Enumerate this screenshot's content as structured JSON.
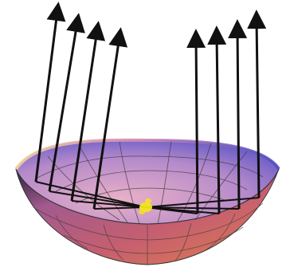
{
  "figure": {
    "background": "#ffffff",
    "mirror": {
      "shape": "paraboloid",
      "colors": {
        "rim_left": "#f3d8a6",
        "rim_mid": "#d98fb8",
        "rim_right": "#4f4fc8",
        "inner_left": "#e7b59c",
        "inner_right": "#7a6ad0",
        "outer_bottom": "#c25a6a",
        "outer_right": "#d66a48",
        "grid": "#3a3a3a"
      }
    },
    "focus": {
      "color": "#f2e61a"
    },
    "rays": {
      "color": "#111111",
      "left_count": 4,
      "right_count": 4
    }
  }
}
